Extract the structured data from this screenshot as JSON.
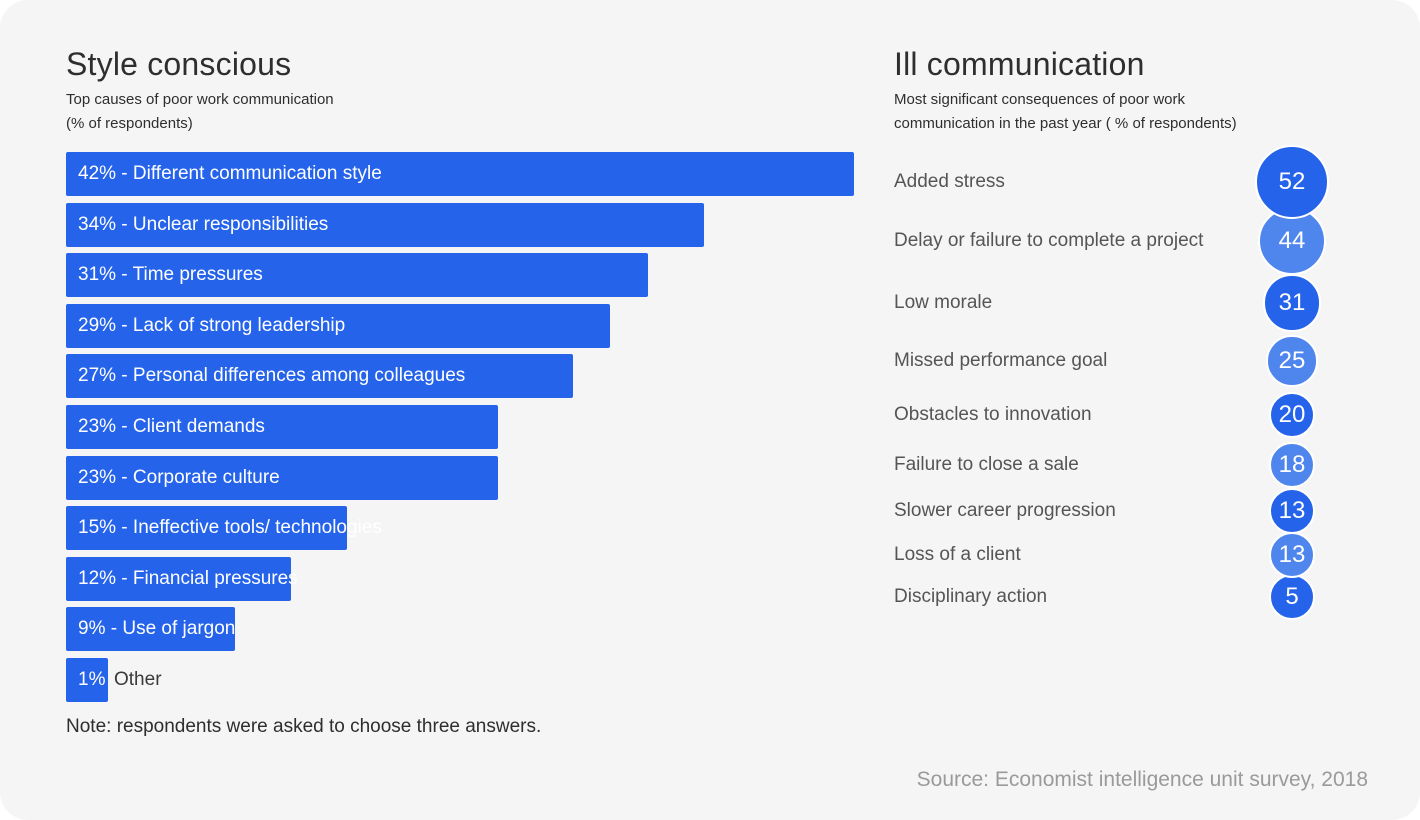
{
  "left_panel": {
    "title": "Style conscious",
    "subtitle": "Top causes of poor work communication\n (% of respondents)",
    "note": "Note: respondents were asked to choose three answers."
  },
  "right_panel": {
    "title": "Ill communication",
    "subtitle": "Most significant consequences of poor work communication in the past year ( % of respondents)"
  },
  "source": "Source: Economist intelligence unit survey, 2018",
  "colors": {
    "bar": "#2563eb",
    "bubble_dark": "#2563eb",
    "bubble_light": "#4f86ee"
  },
  "chart_data": [
    {
      "type": "bar",
      "orientation": "horizontal",
      "title": "Style conscious",
      "subtitle": "Top causes of poor work communication (% of respondents)",
      "unit": "%",
      "categories": [
        "Different communication style",
        "Unclear responsibilities",
        "Time pressures",
        "Lack of strong leadership",
        "Personal differences among colleagues",
        "Client demands",
        "Corporate culture",
        "Ineffective tools/ technologies",
        "Financial pressures",
        "Use of jargon",
        "Other"
      ],
      "values": [
        42,
        34,
        31,
        29,
        27,
        23,
        23,
        15,
        12,
        9,
        1
      ],
      "labels": [
        "42% - Different communication style",
        "34% - Unclear responsibilities",
        "31% - Time pressures",
        "29% - Lack of strong leadership",
        "27% - Personal differences among colleagues",
        "23% - Client demands",
        "23% - Corporate culture",
        "15% - Ineffective tools/ technologies",
        "12% - Financial pressures",
        "9% - Use of jargon",
        "1%"
      ],
      "outside_labels": [
        "",
        "",
        "",
        "",
        "",
        "",
        "",
        "",
        "",
        "",
        "Other"
      ]
    },
    {
      "type": "scatter",
      "variant": "bubble",
      "title": "Ill communication",
      "subtitle": "Most significant consequences of poor work communication in the past year ( % of respondents)",
      "unit": "%",
      "categories": [
        "Added stress",
        "Delay or failure to complete a project",
        "Low morale",
        "Missed performance goal",
        "Obstacles to innovation",
        "Failure to close a sale",
        "Slower career progression",
        "Loss of a client",
        "Disciplinary action"
      ],
      "values": [
        52,
        44,
        31,
        25,
        20,
        18,
        13,
        13,
        5
      ],
      "shade": [
        "dark",
        "light",
        "dark",
        "light",
        "dark",
        "light",
        "dark",
        "light",
        "dark"
      ]
    }
  ]
}
